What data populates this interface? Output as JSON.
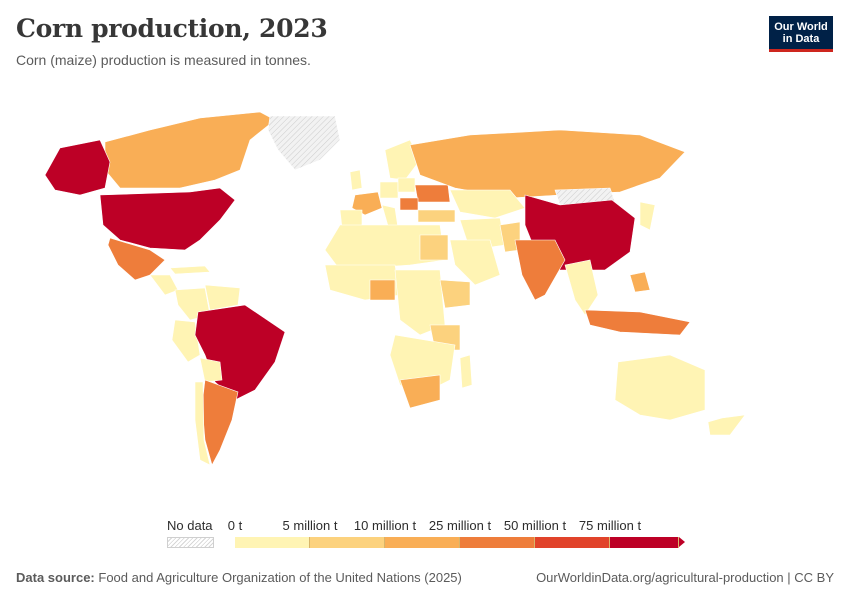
{
  "title": "Corn production, 2023",
  "subtitle": "Corn (maize) production is measured in tonnes.",
  "logo": {
    "line1": "Our World",
    "line2": "in Data"
  },
  "legend": {
    "no_data_label": "No data",
    "labels": [
      "0 t",
      "5 million t",
      "10 million t",
      "25 million t",
      "50 million t",
      "75 million t"
    ],
    "colors": [
      "#fff4b4",
      "#fcd27e",
      "#f9ae56",
      "#ee7d3b",
      "#e1432a",
      "#bd0026"
    ]
  },
  "colors": {
    "ocean": "#ffffff",
    "no_data": "#e6e6e6",
    "border": "#ffffff"
  },
  "map_regions": [
    {
      "name": "United States",
      "bin": 5
    },
    {
      "name": "China",
      "bin": 5
    },
    {
      "name": "Brazil",
      "bin": 5
    },
    {
      "name": "Argentina",
      "bin": 3
    },
    {
      "name": "India",
      "bin": 3
    },
    {
      "name": "Ukraine",
      "bin": 3
    },
    {
      "name": "Mexico",
      "bin": 3
    },
    {
      "name": "Indonesia",
      "bin": 3
    },
    {
      "name": "South Africa",
      "bin": 2
    },
    {
      "name": "Russia",
      "bin": 2
    },
    {
      "name": "Canada",
      "bin": 2
    },
    {
      "name": "Nigeria",
      "bin": 2
    },
    {
      "name": "France",
      "bin": 2
    },
    {
      "name": "Romania",
      "bin": 3
    },
    {
      "name": "Philippines",
      "bin": 2
    },
    {
      "name": "Egypt",
      "bin": 1
    },
    {
      "name": "Ethiopia",
      "bin": 1
    },
    {
      "name": "Turkey",
      "bin": 1
    },
    {
      "name": "Pakistan",
      "bin": 1
    },
    {
      "name": "Tanzania",
      "bin": 1
    },
    {
      "name": "Australia",
      "bin": 0
    },
    {
      "name": "Kazakhstan",
      "bin": 0
    },
    {
      "name": "Greenland",
      "bin": -1
    },
    {
      "name": "Mongolia",
      "bin": -1
    }
  ],
  "footer": {
    "source_prefix": "Data source:",
    "source": "Food and Agriculture Organization of the United Nations (2025)",
    "url": "OurWorldinData.org/agricultural-production | CC BY"
  }
}
